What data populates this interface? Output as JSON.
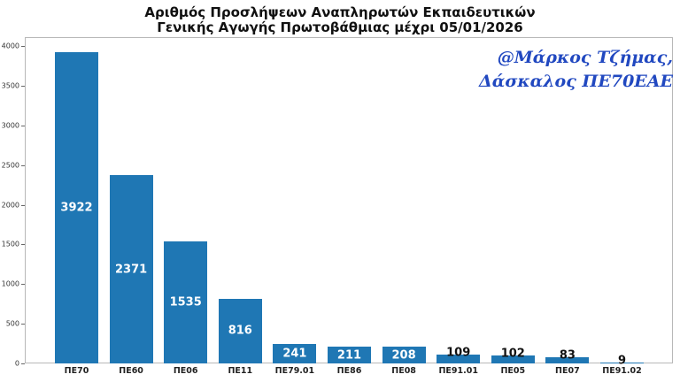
{
  "title": {
    "line1": "Αριθμός Προσλήψεων Αναπληρωτών Εκπαιδευτικών",
    "line2": "Γενικής Αγωγής Πρωτοβάθμιας μέχρι 05/01/2026"
  },
  "watermark": {
    "line1": "@Μάρκος Τζήμας,",
    "line2": "Δάσκαλος ΠΕ70ΕΑΕ"
  },
  "colors": {
    "bar": "#1f77b4",
    "watermark": "#2148c0"
  },
  "chart_data": {
    "type": "bar",
    "title": "Αριθμός Προσλήψεων Αναπληρωτών Εκπαιδευτικών Γενικής Αγωγής Πρωτοβάθμιας μέχρι 05/01/2026",
    "xlabel": "",
    "ylabel": "",
    "categories": [
      "ΠΕ70",
      "ΠΕ60",
      "ΠΕ06",
      "ΠΕ11",
      "ΠΕ79.01",
      "ΠΕ86",
      "ΠΕ08",
      "ΠΕ91.01",
      "ΠΕ05",
      "ΠΕ07",
      "ΠΕ91.02"
    ],
    "values": [
      3922,
      2371,
      1535,
      816,
      241,
      211,
      208,
      109,
      102,
      83,
      9
    ],
    "yticks": [
      0,
      500,
      1000,
      1500,
      2000,
      2500,
      3000,
      3500,
      4000
    ],
    "ylim": [
      0,
      4100
    ],
    "grid": false,
    "legend": null,
    "annotation": "@Μάρκος Τζήμας, Δάσκαλος ΠΕ70ΕΑΕ"
  }
}
